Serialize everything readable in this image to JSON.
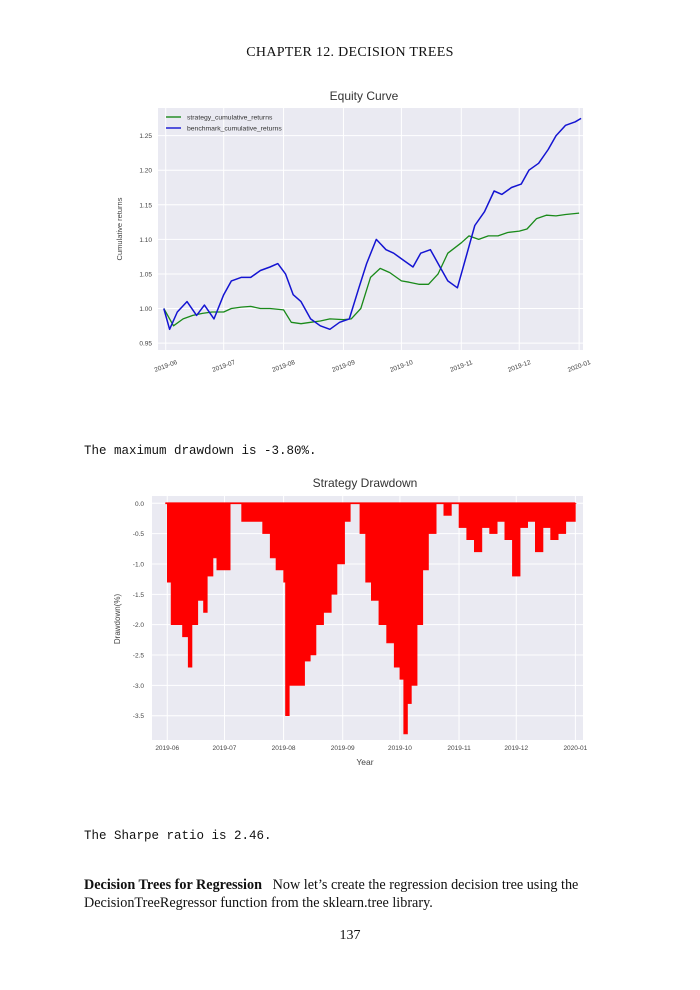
{
  "page": {
    "running_head": "CHAPTER 12.  DECISION TREES",
    "drawdown_sentence": "The maximum drawdown is -3.80%.",
    "sharpe_sentence": "The Sharpe ratio is 2.46.",
    "paragraph_heading": "Decision Trees for Regression",
    "paragraph_text": "Now let’s create the regression decision tree using the DecisionTreeRegressor function from the sklearn.tree library.",
    "page_number": "137"
  },
  "chart_data": [
    {
      "type": "line",
      "title": "Equity Curve",
      "xlabel": "",
      "ylabel": "Cumulative returns",
      "x_ticks": [
        "2019-06",
        "2019-07",
        "2019-08",
        "2019-09",
        "2019-10",
        "2019-11",
        "2019-12",
        "2020-01"
      ],
      "x_range": [
        "2019-05-28",
        "2020-01-03"
      ],
      "y_ticks": [
        0.95,
        1.0,
        1.05,
        1.1,
        1.15,
        1.2,
        1.25
      ],
      "ylim": [
        0.94,
        1.29
      ],
      "grid": true,
      "legend_position": "top-left",
      "series": [
        {
          "name": "strategy_cumulative_returns",
          "color": "#1a8a1a",
          "x": [
            "2019-05-31",
            "2019-06-05",
            "2019-06-10",
            "2019-06-15",
            "2019-06-20",
            "2019-06-25",
            "2019-07-01",
            "2019-07-05",
            "2019-07-10",
            "2019-07-15",
            "2019-07-20",
            "2019-07-25",
            "2019-08-01",
            "2019-08-05",
            "2019-08-10",
            "2019-08-15",
            "2019-08-20",
            "2019-08-25",
            "2019-09-01",
            "2019-09-05",
            "2019-09-10",
            "2019-09-15",
            "2019-09-20",
            "2019-09-25",
            "2019-10-01",
            "2019-10-05",
            "2019-10-10",
            "2019-10-15",
            "2019-10-20",
            "2019-10-25",
            "2019-11-01",
            "2019-11-05",
            "2019-11-10",
            "2019-11-15",
            "2019-11-20",
            "2019-11-25",
            "2019-12-01",
            "2019-12-05",
            "2019-12-10",
            "2019-12-15",
            "2019-12-20",
            "2019-12-25",
            "2020-01-01"
          ],
          "y": [
            1.0,
            0.975,
            0.985,
            0.99,
            0.993,
            0.995,
            0.995,
            1.0,
            1.002,
            1.003,
            1.0,
            1.0,
            0.998,
            0.98,
            0.978,
            0.98,
            0.982,
            0.985,
            0.984,
            0.985,
            1.0,
            1.045,
            1.058,
            1.052,
            1.04,
            1.038,
            1.035,
            1.035,
            1.05,
            1.08,
            1.095,
            1.105,
            1.1,
            1.105,
            1.105,
            1.11,
            1.112,
            1.115,
            1.13,
            1.135,
            1.134,
            1.136,
            1.138
          ]
        },
        {
          "name": "benchmark_cumulative_returns",
          "color": "#1414d2",
          "x": [
            "2019-05-31",
            "2019-06-03",
            "2019-06-07",
            "2019-06-12",
            "2019-06-17",
            "2019-06-21",
            "2019-06-26",
            "2019-07-01",
            "2019-07-05",
            "2019-07-10",
            "2019-07-15",
            "2019-07-20",
            "2019-07-25",
            "2019-07-29",
            "2019-08-02",
            "2019-08-06",
            "2019-08-10",
            "2019-08-15",
            "2019-08-20",
            "2019-08-25",
            "2019-08-30",
            "2019-09-04",
            "2019-09-09",
            "2019-09-13",
            "2019-09-18",
            "2019-09-23",
            "2019-09-27",
            "2019-10-02",
            "2019-10-07",
            "2019-10-11",
            "2019-10-16",
            "2019-10-21",
            "2019-10-25",
            "2019-10-30",
            "2019-11-04",
            "2019-11-08",
            "2019-11-13",
            "2019-11-18",
            "2019-11-22",
            "2019-11-27",
            "2019-12-02",
            "2019-12-06",
            "2019-12-11",
            "2019-12-16",
            "2019-12-20",
            "2019-12-25",
            "2019-12-30",
            "2020-01-02"
          ],
          "y": [
            1.0,
            0.97,
            0.995,
            1.01,
            0.99,
            1.005,
            0.985,
            1.02,
            1.04,
            1.045,
            1.045,
            1.055,
            1.06,
            1.065,
            1.05,
            1.02,
            1.01,
            0.985,
            0.975,
            0.97,
            0.98,
            0.985,
            1.03,
            1.065,
            1.1,
            1.085,
            1.08,
            1.07,
            1.06,
            1.08,
            1.085,
            1.06,
            1.04,
            1.03,
            1.08,
            1.12,
            1.14,
            1.17,
            1.165,
            1.175,
            1.18,
            1.2,
            1.21,
            1.23,
            1.25,
            1.265,
            1.27,
            1.275
          ]
        }
      ]
    },
    {
      "type": "area",
      "title": "Strategy Drawdown",
      "xlabel": "Year",
      "ylabel": "Drawdown(%)",
      "x_ticks": [
        "2019-06",
        "2019-07",
        "2019-08",
        "2019-09",
        "2019-10",
        "2019-11",
        "2019-12",
        "2020-01"
      ],
      "x_range": [
        "2019-05-24",
        "2020-01-05"
      ],
      "y_ticks": [
        0.0,
        -0.5,
        -1.0,
        -1.5,
        -2.0,
        -2.5,
        -3.0,
        -3.5
      ],
      "ylim": [
        -3.9,
        0.12
      ],
      "grid": true,
      "color": "#ff0000",
      "x": [
        "2019-05-31",
        "2019-06-01",
        "2019-06-03",
        "2019-06-06",
        "2019-06-09",
        "2019-06-12",
        "2019-06-14",
        "2019-06-17",
        "2019-06-20",
        "2019-06-22",
        "2019-06-25",
        "2019-06-27",
        "2019-07-01",
        "2019-07-04",
        "2019-07-07",
        "2019-07-10",
        "2019-07-13",
        "2019-07-17",
        "2019-07-21",
        "2019-07-25",
        "2019-07-28",
        "2019-08-01",
        "2019-08-02",
        "2019-08-04",
        "2019-08-08",
        "2019-08-12",
        "2019-08-15",
        "2019-08-18",
        "2019-08-22",
        "2019-08-26",
        "2019-08-29",
        "2019-09-02",
        "2019-09-05",
        "2019-09-07",
        "2019-09-10",
        "2019-09-13",
        "2019-09-16",
        "2019-09-20",
        "2019-09-24",
        "2019-09-28",
        "2019-10-01",
        "2019-10-03",
        "2019-10-05",
        "2019-10-07",
        "2019-10-10",
        "2019-10-13",
        "2019-10-16",
        "2019-10-20",
        "2019-10-24",
        "2019-10-28",
        "2019-11-01",
        "2019-11-05",
        "2019-11-09",
        "2019-11-13",
        "2019-11-17",
        "2019-11-21",
        "2019-11-25",
        "2019-11-29",
        "2019-12-03",
        "2019-12-07",
        "2019-12-11",
        "2019-12-15",
        "2019-12-19",
        "2019-12-23",
        "2019-12-27",
        "2020-01-01"
      ],
      "y": [
        0.0,
        -1.3,
        -2.0,
        -2.0,
        -2.2,
        -2.7,
        -2.0,
        -1.6,
        -1.8,
        -1.2,
        -0.9,
        -1.1,
        -1.1,
        0.0,
        0.0,
        -0.3,
        -0.3,
        -0.3,
        -0.5,
        -0.9,
        -1.1,
        -1.3,
        -3.5,
        -3.0,
        -3.0,
        -2.6,
        -2.5,
        -2.0,
        -1.8,
        -1.5,
        -1.0,
        -0.3,
        0.0,
        0.0,
        -0.5,
        -1.3,
        -1.6,
        -2.0,
        -2.3,
        -2.7,
        -2.9,
        -3.8,
        -3.3,
        -3.0,
        -2.0,
        -1.1,
        -0.5,
        0.0,
        -0.2,
        0.0,
        -0.4,
        -0.6,
        -0.8,
        -0.4,
        -0.5,
        -0.3,
        -0.6,
        -1.2,
        -0.4,
        -0.3,
        -0.8,
        -0.4,
        -0.6,
        -0.5,
        -0.3,
        0.0
      ]
    }
  ]
}
